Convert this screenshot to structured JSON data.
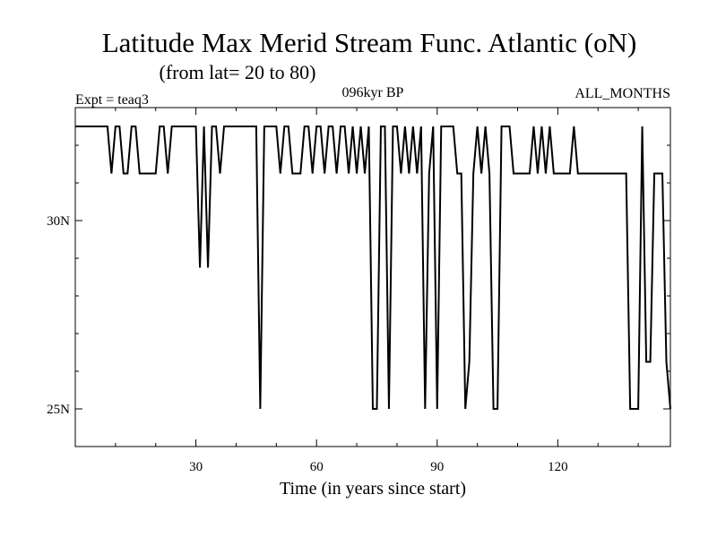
{
  "chart_data": {
    "type": "line",
    "title": "Latitude Max Merid Stream Func. Atlantic (oN)",
    "subtitle": "(from lat= 20 to 80)",
    "annotations": {
      "left": "Expt = teaq3",
      "center": "096kyr BP",
      "right": "ALL_MONTHS"
    },
    "xlabel": "Time (in years since start)",
    "ylabel": "",
    "xlim": [
      0,
      148
    ],
    "ylim": [
      24,
      33
    ],
    "x_ticks": [
      30,
      60,
      90,
      120
    ],
    "x_tick_labels": [
      "30",
      "60",
      "90",
      "120"
    ],
    "y_ticks": [
      25,
      30
    ],
    "y_tick_labels": [
      "25N",
      "30N"
    ],
    "grid": false,
    "series": [
      {
        "x": [
          0,
          1,
          2,
          3,
          4,
          5,
          6,
          7,
          8,
          9,
          10,
          11,
          12,
          13,
          14,
          15,
          16,
          17,
          18,
          19,
          20,
          21,
          22,
          23,
          24,
          25,
          26,
          27,
          28,
          29,
          30,
          31,
          32,
          33,
          34,
          35,
          36,
          37,
          38,
          39,
          40,
          41,
          42,
          43,
          44,
          45,
          46,
          47,
          48,
          49,
          50,
          51,
          52,
          53,
          54,
          55,
          56,
          57,
          58,
          59,
          60,
          61,
          62,
          63,
          64,
          65,
          66,
          67,
          68,
          69,
          70,
          71,
          72,
          73,
          74,
          75,
          76,
          77,
          78,
          79,
          80,
          81,
          82,
          83,
          84,
          85,
          86,
          87,
          88,
          89,
          90,
          91,
          92,
          93,
          94,
          95,
          96,
          97,
          98,
          99,
          100,
          101,
          102,
          103,
          104,
          105,
          106,
          107,
          108,
          109,
          110,
          111,
          112,
          113,
          114,
          115,
          116,
          117,
          118,
          119,
          120,
          121,
          122,
          123,
          124,
          125,
          126,
          127,
          128,
          129,
          130,
          131,
          132,
          133,
          134,
          135,
          136,
          137,
          138,
          139,
          140,
          141,
          142,
          143,
          144,
          145,
          146,
          147,
          148
        ],
        "y": [
          32.5,
          32.5,
          32.5,
          32.5,
          32.5,
          32.5,
          32.5,
          32.5,
          32.5,
          31.25,
          32.5,
          32.5,
          31.25,
          31.25,
          32.5,
          32.5,
          31.25,
          31.25,
          31.25,
          31.25,
          31.25,
          32.5,
          32.5,
          31.25,
          32.5,
          32.5,
          32.5,
          32.5,
          32.5,
          32.5,
          32.5,
          28.75,
          32.5,
          28.75,
          32.5,
          32.5,
          31.25,
          32.5,
          32.5,
          32.5,
          32.5,
          32.5,
          32.5,
          32.5,
          32.5,
          32.5,
          25,
          32.5,
          32.5,
          32.5,
          32.5,
          31.25,
          32.5,
          32.5,
          31.25,
          31.25,
          31.25,
          32.5,
          32.5,
          31.25,
          32.5,
          32.5,
          31.25,
          32.5,
          32.5,
          31.25,
          32.5,
          32.5,
          31.25,
          32.5,
          31.25,
          32.5,
          31.25,
          32.5,
          25,
          25,
          32.5,
          32.5,
          25,
          32.5,
          32.5,
          31.25,
          32.5,
          31.25,
          32.5,
          31.25,
          32.5,
          25,
          31.25,
          32.5,
          25,
          32.5,
          32.5,
          32.5,
          32.5,
          31.25,
          31.25,
          25,
          26.25,
          31.25,
          32.5,
          31.25,
          32.5,
          31.25,
          25,
          25,
          32.5,
          32.5,
          32.5,
          31.25,
          31.25,
          31.25,
          31.25,
          31.25,
          32.5,
          31.25,
          32.5,
          31.25,
          32.5,
          31.25,
          31.25,
          31.25,
          31.25,
          31.25,
          32.5,
          31.25,
          31.25,
          31.25,
          31.25,
          31.25,
          31.25,
          31.25,
          31.25,
          31.25,
          31.25,
          31.25,
          31.25,
          31.25,
          25,
          25,
          25,
          32.5,
          26.25,
          26.25,
          31.25,
          31.25,
          31.25,
          26.25,
          25
        ]
      }
    ]
  }
}
